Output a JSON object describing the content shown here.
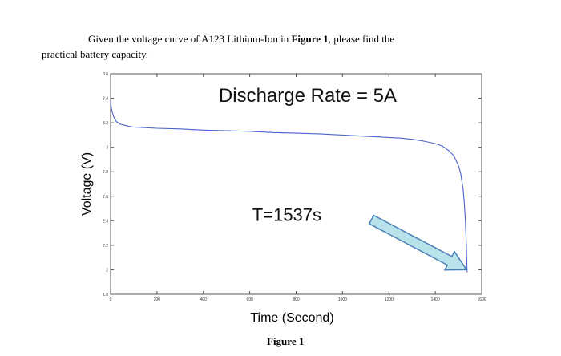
{
  "question": {
    "line1_pre": "Given the voltage curve of A123 Lithium-Ion in ",
    "line1_bold": "Figure 1",
    "line1_post": ", please find the",
    "line2": "practical battery capacity."
  },
  "figure_caption": "Figure 1",
  "chart_data": {
    "type": "line",
    "title": "",
    "xlabel": "Time (Second)",
    "ylabel": "Voltage (V)",
    "xlim": [
      0,
      1600
    ],
    "ylim": [
      1.8,
      3.6
    ],
    "x_ticks": [
      0,
      200,
      400,
      600,
      800,
      1000,
      1200,
      1400,
      1600
    ],
    "x_tick_labels": [
      "0",
      "200",
      "400",
      "600",
      "800",
      "1000",
      "1200",
      "1400",
      "1600"
    ],
    "y_ticks": [
      1.8,
      2.0,
      2.2,
      2.4,
      2.6,
      2.8,
      3.0,
      3.2,
      3.4,
      3.6
    ],
    "y_tick_labels": [
      "1.8",
      "2",
      "2.2",
      "2.4",
      "2.6",
      "2.8",
      "3",
      "3.2",
      "3.4",
      "3.6"
    ],
    "grid": false,
    "series": [
      {
        "name": "",
        "color": "#4a63c9",
        "x": [
          0,
          3,
          8,
          15,
          25,
          40,
          60,
          80,
          100,
          150,
          200,
          300,
          400,
          500,
          600,
          700,
          800,
          900,
          1000,
          1100,
          1200,
          1250,
          1300,
          1350,
          1400,
          1430,
          1460,
          1480,
          1500,
          1510,
          1520,
          1525,
          1530,
          1534,
          1537
        ],
        "y": [
          3.38,
          3.32,
          3.28,
          3.24,
          3.21,
          3.19,
          3.18,
          3.17,
          3.165,
          3.16,
          3.155,
          3.15,
          3.14,
          3.135,
          3.13,
          3.12,
          3.115,
          3.11,
          3.1,
          3.09,
          3.08,
          3.075,
          3.065,
          3.05,
          3.03,
          3.01,
          2.97,
          2.93,
          2.85,
          2.78,
          2.66,
          2.55,
          2.4,
          2.2,
          1.98
        ]
      }
    ],
    "annotations": [
      {
        "text": "Discharge Rate = 5A",
        "x": 850,
        "y": 3.37
      },
      {
        "text": "T=1537s",
        "x": 760,
        "y": 2.4
      }
    ],
    "arrow": {
      "from": [
        1125,
        2.41
      ],
      "to": [
        1535,
        2.0
      ],
      "fill": "#b9e3ea",
      "stroke": "#4a7fb5"
    }
  }
}
